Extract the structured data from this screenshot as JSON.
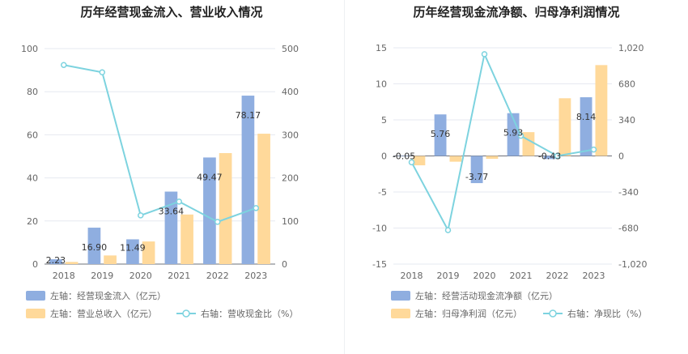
{
  "colors": {
    "bar_primary": "#8faee0",
    "bar_secondary": "#ffd99a",
    "line": "#7dd3df"
  },
  "chart_data": [
    {
      "type": "bar",
      "title": "历年经营现金流入、营业收入情况",
      "categories": [
        "2018",
        "2019",
        "2020",
        "2021",
        "2022",
        "2023"
      ],
      "ylim_left": [
        0,
        100
      ],
      "yticks_left": [
        "0",
        "20",
        "40",
        "60",
        "80",
        "100"
      ],
      "ylim_right": [
        0,
        500
      ],
      "yticks_right": [
        "0",
        "100",
        "200",
        "300",
        "400",
        "500"
      ],
      "series": [
        {
          "name": "左轴：经营现金流入（亿元）",
          "axis": "left",
          "kind": "bar",
          "values": [
            2.23,
            16.9,
            11.49,
            33.64,
            49.47,
            78.17
          ],
          "labels": [
            "2.23",
            "16.90",
            "11.49",
            "33.64",
            "49.47",
            "78.17"
          ]
        },
        {
          "name": "左轴：营业总收入（亿元）",
          "axis": "left",
          "kind": "bar",
          "values": [
            1.0,
            4.0,
            10.5,
            23.0,
            51.5,
            60.5
          ]
        },
        {
          "name": "右轴：营收现金比（%）",
          "axis": "right",
          "kind": "line",
          "values": [
            462,
            445,
            113,
            145,
            98,
            130
          ]
        }
      ],
      "legend_position": "bottom-left",
      "grid": true
    },
    {
      "type": "bar",
      "title": "历年经营现金流净额、归母净利润情况",
      "categories": [
        "2018",
        "2019",
        "2020",
        "2021",
        "2022",
        "2023"
      ],
      "ylim_left": [
        -15,
        15
      ],
      "yticks_left": [
        "-15",
        "-10",
        "-5",
        "0",
        "5",
        "10",
        "15"
      ],
      "ylim_right": [
        -1020,
        1020
      ],
      "yticks_right": [
        "-1,020",
        "-680",
        "-340",
        "0",
        "340",
        "680",
        "1,020"
      ],
      "series": [
        {
          "name": "左轴：经营活动现金流净额（亿元）",
          "axis": "left",
          "kind": "bar",
          "values": [
            -0.05,
            5.76,
            -3.77,
            5.93,
            -0.43,
            8.14
          ],
          "labels": [
            "-0.05",
            "5.76",
            "-3.77",
            "5.93",
            "-0.43",
            "8.14"
          ]
        },
        {
          "name": "左轴：归母净利润（亿元）",
          "axis": "left",
          "kind": "bar",
          "values": [
            -1.3,
            -0.8,
            -0.4,
            3.3,
            8.0,
            12.6
          ]
        },
        {
          "name": "右轴：净现比（%）",
          "axis": "right",
          "kind": "line",
          "values": [
            -60,
            -700,
            960,
            190,
            0,
            60
          ]
        }
      ],
      "legend_position": "bottom-left",
      "grid": true
    }
  ]
}
